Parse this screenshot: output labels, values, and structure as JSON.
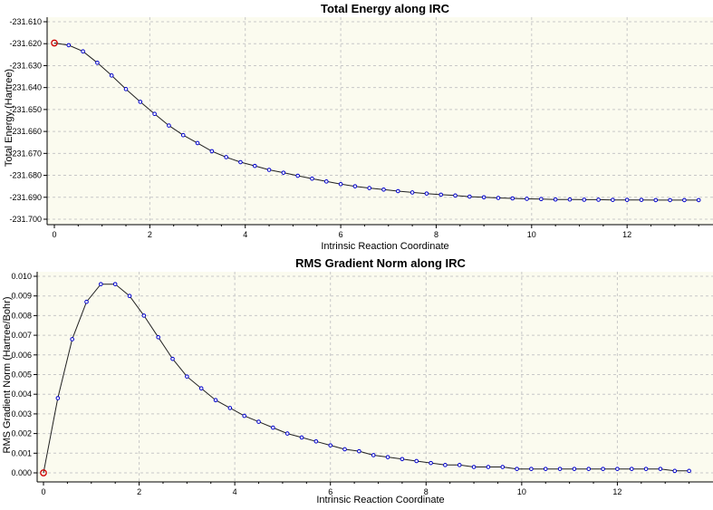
{
  "chart_data": [
    {
      "type": "line",
      "title": "Total Energy along IRC",
      "xlabel": "Intrinsic Reaction Coordinate",
      "ylabel": "Total Energy (Hartree)",
      "xlim": [
        0,
        13.8
      ],
      "ylim": [
        -231.7,
        -231.61
      ],
      "xticks": [
        0,
        2,
        4,
        6,
        8,
        10,
        12
      ],
      "xtick_labels": [
        "0",
        "2",
        "4",
        "6",
        "8",
        "10",
        "12"
      ],
      "yticks": [
        -231.61,
        -231.62,
        -231.63,
        -231.64,
        -231.65,
        -231.66,
        -231.67,
        -231.68,
        -231.69,
        -231.7
      ],
      "ytick_labels": [
        "-231.610",
        "-231.620",
        "-231.630",
        "-231.640",
        "-231.650",
        "-231.660",
        "-231.670",
        "-231.680",
        "-231.690",
        "-231.700"
      ],
      "grid": true,
      "series": [
        {
          "x": [
            0,
            0.3,
            0.6,
            0.9,
            1.2,
            1.5,
            1.8,
            2.1,
            2.4,
            2.7,
            3.0,
            3.3,
            3.6,
            3.9,
            4.2,
            4.5,
            4.8,
            5.1,
            5.4,
            5.7,
            6.0,
            6.3,
            6.6,
            6.9,
            7.2,
            7.5,
            7.8,
            8.1,
            8.4,
            8.7,
            9.0,
            9.3,
            9.6,
            9.9,
            10.2,
            10.5,
            10.8,
            11.1,
            11.4,
            11.7,
            12.0,
            12.3,
            12.6,
            12.9,
            13.2,
            13.5
          ],
          "y": [
            -231.6197,
            -231.6207,
            -231.6235,
            -231.6287,
            -231.6345,
            -231.6407,
            -231.6465,
            -231.652,
            -231.6573,
            -231.6617,
            -231.6653,
            -231.669,
            -231.6717,
            -231.674,
            -231.6757,
            -231.6775,
            -231.6788,
            -231.6802,
            -231.6815,
            -231.6828,
            -231.684,
            -231.685,
            -231.6858,
            -231.6865,
            -231.6872,
            -231.6878,
            -231.6883,
            -231.6888,
            -231.6892,
            -231.6897,
            -231.69,
            -231.6903,
            -231.6905,
            -231.6907,
            -231.6908,
            -231.691,
            -231.691,
            -231.6911,
            -231.6911,
            -231.6912,
            -231.6912,
            -231.6912,
            -231.6913,
            -231.6913,
            -231.6913,
            -231.6913
          ]
        }
      ]
    },
    {
      "type": "line",
      "title": "RMS Gradient Norm along IRC",
      "xlabel": "Intrinsic Reaction Coordinate",
      "ylabel": "RMS Gradient Norm (Hartree/Bohr)",
      "xlim": [
        0,
        14.0
      ],
      "ylim": [
        0.0,
        0.01
      ],
      "xticks": [
        0,
        2,
        4,
        6,
        8,
        10,
        12
      ],
      "xtick_labels": [
        "0",
        "2",
        "4",
        "6",
        "8",
        "10",
        "12"
      ],
      "yticks": [
        0.0,
        0.001,
        0.002,
        0.003,
        0.004,
        0.005,
        0.006,
        0.007,
        0.008,
        0.009,
        0.01
      ],
      "ytick_labels": [
        "0.000",
        "0.001",
        "0.002",
        "0.003",
        "0.004",
        "0.005",
        "0.006",
        "0.007",
        "0.008",
        "0.009",
        "0.010"
      ],
      "grid": true,
      "series": [
        {
          "x": [
            0,
            0.3,
            0.6,
            0.9,
            1.2,
            1.5,
            1.8,
            2.1,
            2.4,
            2.7,
            3.0,
            3.3,
            3.6,
            3.9,
            4.2,
            4.5,
            4.8,
            5.1,
            5.4,
            5.7,
            6.0,
            6.3,
            6.6,
            6.9,
            7.2,
            7.5,
            7.8,
            8.1,
            8.4,
            8.7,
            9.0,
            9.3,
            9.6,
            9.9,
            10.2,
            10.5,
            10.8,
            11.1,
            11.4,
            11.7,
            12.0,
            12.3,
            12.6,
            12.9,
            13.2,
            13.5
          ],
          "y": [
            0.0,
            0.0038,
            0.0068,
            0.0087,
            0.0096,
            0.0096,
            0.009,
            0.008,
            0.0069,
            0.0058,
            0.0049,
            0.0043,
            0.0037,
            0.0033,
            0.0029,
            0.0026,
            0.0023,
            0.002,
            0.0018,
            0.0016,
            0.0014,
            0.0012,
            0.0011,
            0.0009,
            0.0008,
            0.0007,
            0.0006,
            0.0005,
            0.0004,
            0.0004,
            0.0003,
            0.0003,
            0.0003,
            0.0002,
            0.0002,
            0.0002,
            0.0002,
            0.0002,
            0.0002,
            0.0002,
            0.0002,
            0.0002,
            0.0002,
            0.0002,
            0.0001,
            0.0001
          ]
        }
      ]
    }
  ],
  "colors": {
    "plot_bg": "#fbfbef",
    "grid": "#c8c8c8",
    "line": "#202020",
    "marker": "#0000cc",
    "start_marker": "#cc0000"
  }
}
